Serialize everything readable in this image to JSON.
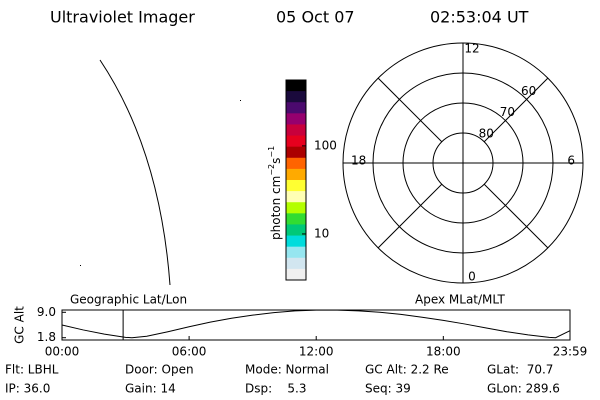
{
  "header": {
    "title": "Ultraviolet Imager",
    "date": "05 Oct 07",
    "time": "02:53:04 UT"
  },
  "colorbar": {
    "label": [
      "photon cm",
      "−2",
      "s",
      "−1"
    ],
    "log": true,
    "lim": [
      3,
      560
    ],
    "ticks": [
      10,
      100
    ],
    "colors": [
      "#000000",
      "#1a0a3c",
      "#4b0a6e",
      "#96006e",
      "#c8003c",
      "#e6001e",
      "#aa0000",
      "#ff6400",
      "#ffaa00",
      "#ffff32",
      "#ffffb4",
      "#b4ff00",
      "#32dc32",
      "#00c878",
      "#00dcdc",
      "#96e6f0",
      "#d2e6f0",
      "#f0f0f0"
    ]
  },
  "polar": {
    "lim": [
      90,
      50
    ],
    "rings": [
      80,
      70,
      60
    ],
    "mlt_ticks": [
      0,
      6,
      12,
      18
    ]
  },
  "chart_data": {
    "type": "line",
    "ylabel": "GC Alt",
    "left_label": "Geographic Lat/Lon",
    "right_label": "Apex MLat/MLT",
    "x": [
      0,
      1,
      2,
      3,
      3.3,
      4,
      5,
      6,
      7,
      8,
      9,
      10,
      11,
      12,
      13,
      14,
      15,
      16,
      17,
      18,
      19,
      20,
      21,
      22,
      23,
      23.3,
      23.98
    ],
    "series": [
      {
        "name": "GC Alt",
        "color": "#000000",
        "values": [
          5.4,
          4.0,
          2.8,
          1.9,
          1.8,
          2.2,
          3.5,
          4.9,
          6.2,
          7.3,
          8.2,
          8.9,
          9.4,
          9.6,
          9.6,
          9.4,
          9.0,
          8.4,
          7.6,
          6.7,
          5.7,
          4.6,
          3.5,
          2.6,
          1.9,
          1.8,
          3.8
        ]
      }
    ],
    "current_time": 2.885,
    "current_color": "#cc0000",
    "xlim": [
      0,
      23.98
    ],
    "xticks": [
      {
        "value": 0,
        "label": "00:00"
      },
      {
        "value": 6,
        "label": "06:00"
      },
      {
        "value": 12,
        "label": "12:00"
      },
      {
        "value": 18,
        "label": "18:00"
      },
      {
        "value": 23.98,
        "label": "23:59"
      }
    ],
    "ylim": [
      1.15,
      9.65
    ],
    "yticks": [
      {
        "value": 9,
        "label": "9.0"
      },
      1.8
    ]
  },
  "info": {
    "rows": [
      [
        "Flt: LBHL",
        "Door: Open",
        "Mode: Normal",
        "GC Alt: 2.2 Re",
        "GLat:  70.7"
      ],
      [
        "IP: 36.0",
        "Gain: 14",
        "Dsp:    5.3",
        "Seq: 39",
        "GLon: 289.6"
      ]
    ]
  }
}
